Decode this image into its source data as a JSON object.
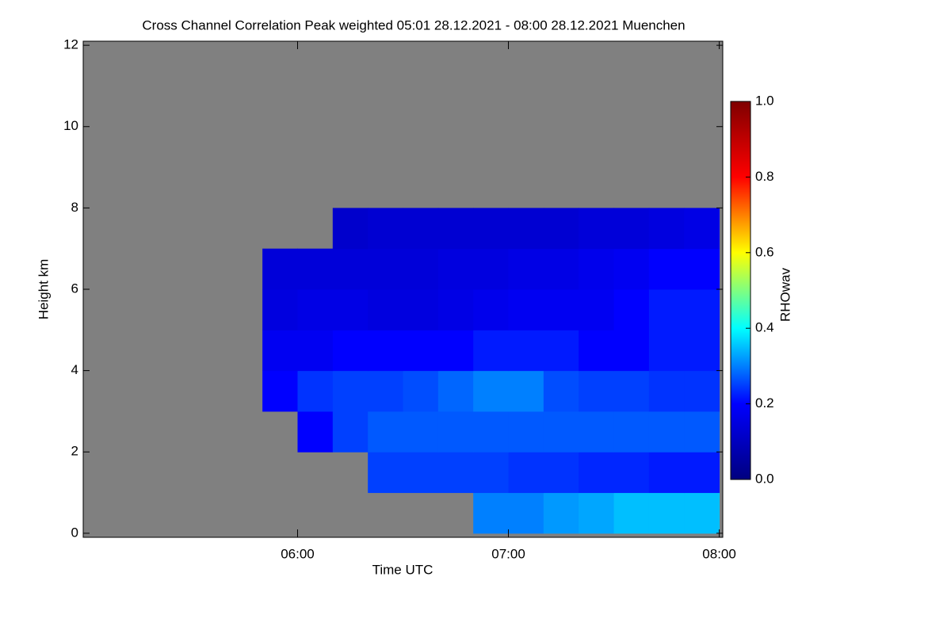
{
  "chart_data": {
    "type": "heatmap",
    "title": "Cross Channel Correlation Peak weighted   05:01 28.12.2021 - 08:00 28.12.2021 Muenchen",
    "xlabel": "Time UTC",
    "ylabel": "Height km",
    "colorbar_label": "RHOwav",
    "xlim": [
      299,
      481
    ],
    "xticks": [
      {
        "value": 360,
        "label": "06:00"
      },
      {
        "value": 420,
        "label": "07:00"
      },
      {
        "value": 480,
        "label": "08:00"
      }
    ],
    "ylim": [
      -0.1,
      12.1
    ],
    "yticks": [
      0,
      2,
      4,
      6,
      8,
      10,
      12
    ],
    "clim": [
      0,
      1
    ],
    "cticks": [
      {
        "value": 0,
        "label": "0.0"
      },
      {
        "value": 0.2,
        "label": "0.2"
      },
      {
        "value": 0.4,
        "label": "0.4"
      },
      {
        "value": 0.6,
        "label": "0.6"
      },
      {
        "value": 0.8,
        "label": "0.8"
      },
      {
        "value": 1,
        "label": "1.0"
      }
    ],
    "colormap": [
      "#00007f",
      "#0000ff",
      "#00ffff",
      "#ffff00",
      "#ff0000",
      "#7f0000"
    ],
    "missing_color": "#808080",
    "x_edges": [
      300,
      310,
      320,
      330,
      340,
      350,
      360,
      370,
      380,
      390,
      400,
      410,
      420,
      430,
      440,
      450,
      460,
      470,
      480
    ],
    "y_edges": [
      0,
      1,
      2,
      3,
      4,
      5,
      6,
      7,
      8,
      9,
      10,
      11,
      12
    ],
    "z": [
      [
        null,
        null,
        null,
        null,
        null,
        null,
        null,
        null,
        null,
        null,
        null,
        0.3,
        0.3,
        0.32,
        0.33,
        0.35,
        0.35,
        0.35
      ],
      [
        null,
        null,
        null,
        null,
        null,
        null,
        null,
        null,
        0.25,
        0.25,
        0.25,
        0.25,
        0.24,
        0.24,
        0.23,
        0.23,
        0.22,
        0.22
      ],
      [
        null,
        null,
        null,
        null,
        null,
        null,
        0.2,
        0.25,
        0.27,
        0.27,
        0.27,
        0.27,
        0.27,
        0.27,
        0.27,
        0.27,
        0.27,
        0.27
      ],
      [
        null,
        null,
        null,
        null,
        null,
        0.2,
        0.24,
        0.25,
        0.25,
        0.26,
        0.28,
        0.3,
        0.3,
        0.26,
        0.25,
        0.25,
        0.24,
        0.24
      ],
      [
        null,
        null,
        null,
        null,
        null,
        0.18,
        0.18,
        0.2,
        0.2,
        0.2,
        0.2,
        0.22,
        0.22,
        0.22,
        0.2,
        0.2,
        0.22,
        0.22
      ],
      [
        null,
        null,
        null,
        null,
        null,
        0.15,
        0.16,
        0.16,
        0.15,
        0.15,
        0.16,
        0.17,
        0.18,
        0.18,
        0.18,
        0.2,
        0.22,
        0.22
      ],
      [
        null,
        null,
        null,
        null,
        null,
        0.14,
        0.14,
        0.14,
        0.14,
        0.14,
        0.15,
        0.15,
        0.16,
        0.16,
        0.17,
        0.18,
        0.2,
        0.2
      ],
      [
        null,
        null,
        null,
        null,
        null,
        null,
        null,
        0.12,
        0.13,
        0.13,
        0.13,
        0.13,
        0.13,
        0.13,
        0.14,
        0.14,
        0.15,
        0.16
      ],
      [
        null,
        null,
        null,
        null,
        null,
        null,
        null,
        null,
        null,
        null,
        null,
        null,
        null,
        null,
        null,
        null,
        null,
        null
      ],
      [
        null,
        null,
        null,
        null,
        null,
        null,
        null,
        null,
        null,
        null,
        null,
        null,
        null,
        null,
        null,
        null,
        null,
        null
      ],
      [
        null,
        null,
        null,
        null,
        null,
        null,
        null,
        null,
        null,
        null,
        null,
        null,
        null,
        null,
        null,
        null,
        null,
        null
      ],
      [
        null,
        null,
        null,
        null,
        null,
        null,
        null,
        null,
        null,
        null,
        null,
        null,
        null,
        null,
        null,
        null,
        null,
        null
      ]
    ]
  }
}
